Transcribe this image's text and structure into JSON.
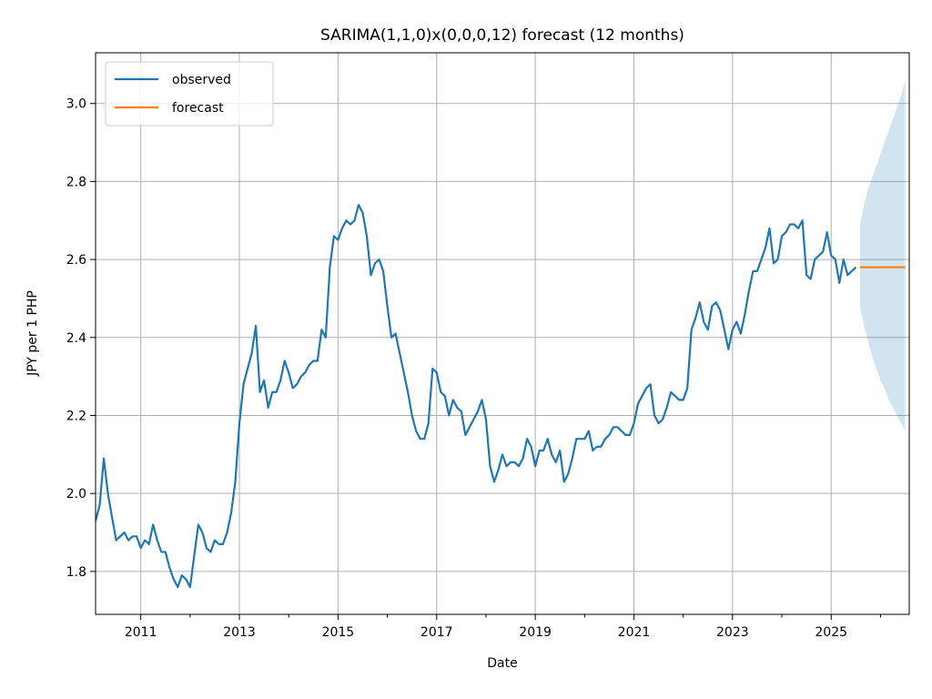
{
  "chart_data": {
    "type": "line",
    "title": "SARIMA(1,1,0)x(0,0,0,12) forecast (12 months)",
    "xlabel": "Date",
    "ylabel": "JPY per 1 PHP",
    "xlim": [
      "2010-02",
      "2026-08"
    ],
    "ylim": [
      1.69,
      3.13
    ],
    "x_ticks": [
      "2011",
      "2013",
      "2015",
      "2017",
      "2019",
      "2021",
      "2023",
      "2025"
    ],
    "y_ticks": [
      "1.8",
      "2.0",
      "2.2",
      "2.4",
      "2.6",
      "2.8",
      "3.0"
    ],
    "grid": true,
    "legend_position": "upper-left",
    "series": [
      {
        "name": "observed",
        "color": "#1f77b4",
        "points": [
          [
            "2010-02",
            1.93
          ],
          [
            "2010-03",
            1.97
          ],
          [
            "2010-04",
            2.09
          ],
          [
            "2010-05",
            2.0
          ],
          [
            "2010-06",
            1.94
          ],
          [
            "2010-07",
            1.88
          ],
          [
            "2010-08",
            1.89
          ],
          [
            "2010-09",
            1.9
          ],
          [
            "2010-10",
            1.88
          ],
          [
            "2010-11",
            1.89
          ],
          [
            "2010-12",
            1.89
          ],
          [
            "2011-01",
            1.86
          ],
          [
            "2011-02",
            1.88
          ],
          [
            "2011-03",
            1.87
          ],
          [
            "2011-04",
            1.92
          ],
          [
            "2011-05",
            1.88
          ],
          [
            "2011-06",
            1.85
          ],
          [
            "2011-07",
            1.85
          ],
          [
            "2011-08",
            1.81
          ],
          [
            "2011-09",
            1.78
          ],
          [
            "2011-10",
            1.76
          ],
          [
            "2011-11",
            1.79
          ],
          [
            "2011-12",
            1.78
          ],
          [
            "2012-01",
            1.76
          ],
          [
            "2012-02",
            1.84
          ],
          [
            "2012-03",
            1.92
          ],
          [
            "2012-04",
            1.9
          ],
          [
            "2012-05",
            1.86
          ],
          [
            "2012-06",
            1.85
          ],
          [
            "2012-07",
            1.88
          ],
          [
            "2012-08",
            1.87
          ],
          [
            "2012-09",
            1.87
          ],
          [
            "2012-10",
            1.9
          ],
          [
            "2012-11",
            1.95
          ],
          [
            "2012-12",
            2.03
          ],
          [
            "2013-01",
            2.18
          ],
          [
            "2013-02",
            2.28
          ],
          [
            "2013-03",
            2.32
          ],
          [
            "2013-04",
            2.36
          ],
          [
            "2013-05",
            2.43
          ],
          [
            "2013-06",
            2.26
          ],
          [
            "2013-07",
            2.29
          ],
          [
            "2013-08",
            2.22
          ],
          [
            "2013-09",
            2.26
          ],
          [
            "2013-10",
            2.26
          ],
          [
            "2013-11",
            2.29
          ],
          [
            "2013-12",
            2.34
          ],
          [
            "2014-01",
            2.31
          ],
          [
            "2014-02",
            2.27
          ],
          [
            "2014-03",
            2.28
          ],
          [
            "2014-04",
            2.3
          ],
          [
            "2014-05",
            2.31
          ],
          [
            "2014-06",
            2.33
          ],
          [
            "2014-07",
            2.34
          ],
          [
            "2014-08",
            2.34
          ],
          [
            "2014-09",
            2.42
          ],
          [
            "2014-10",
            2.4
          ],
          [
            "2014-11",
            2.58
          ],
          [
            "2014-12",
            2.66
          ],
          [
            "2015-01",
            2.65
          ],
          [
            "2015-02",
            2.68
          ],
          [
            "2015-03",
            2.7
          ],
          [
            "2015-04",
            2.69
          ],
          [
            "2015-05",
            2.7
          ],
          [
            "2015-06",
            2.74
          ],
          [
            "2015-07",
            2.72
          ],
          [
            "2015-08",
            2.66
          ],
          [
            "2015-09",
            2.56
          ],
          [
            "2015-10",
            2.59
          ],
          [
            "2015-11",
            2.6
          ],
          [
            "2015-12",
            2.57
          ],
          [
            "2016-01",
            2.48
          ],
          [
            "2016-02",
            2.4
          ],
          [
            "2016-03",
            2.41
          ],
          [
            "2016-04",
            2.36
          ],
          [
            "2016-05",
            2.31
          ],
          [
            "2016-06",
            2.26
          ],
          [
            "2016-07",
            2.2
          ],
          [
            "2016-08",
            2.16
          ],
          [
            "2016-09",
            2.14
          ],
          [
            "2016-10",
            2.14
          ],
          [
            "2016-11",
            2.18
          ],
          [
            "2016-12",
            2.32
          ],
          [
            "2017-01",
            2.31
          ],
          [
            "2017-02",
            2.26
          ],
          [
            "2017-03",
            2.25
          ],
          [
            "2017-04",
            2.2
          ],
          [
            "2017-05",
            2.24
          ],
          [
            "2017-06",
            2.22
          ],
          [
            "2017-07",
            2.21
          ],
          [
            "2017-08",
            2.15
          ],
          [
            "2017-09",
            2.17
          ],
          [
            "2017-10",
            2.19
          ],
          [
            "2017-11",
            2.21
          ],
          [
            "2017-12",
            2.24
          ],
          [
            "2018-01",
            2.19
          ],
          [
            "2018-02",
            2.07
          ],
          [
            "2018-03",
            2.03
          ],
          [
            "2018-04",
            2.06
          ],
          [
            "2018-05",
            2.1
          ],
          [
            "2018-06",
            2.07
          ],
          [
            "2018-07",
            2.08
          ],
          [
            "2018-08",
            2.08
          ],
          [
            "2018-09",
            2.07
          ],
          [
            "2018-10",
            2.09
          ],
          [
            "2018-11",
            2.14
          ],
          [
            "2018-12",
            2.12
          ],
          [
            "2019-01",
            2.07
          ],
          [
            "2019-02",
            2.11
          ],
          [
            "2019-03",
            2.11
          ],
          [
            "2019-04",
            2.14
          ],
          [
            "2019-05",
            2.1
          ],
          [
            "2019-06",
            2.08
          ],
          [
            "2019-07",
            2.11
          ],
          [
            "2019-08",
            2.03
          ],
          [
            "2019-09",
            2.05
          ],
          [
            "2019-10",
            2.09
          ],
          [
            "2019-11",
            2.14
          ],
          [
            "2019-12",
            2.14
          ],
          [
            "2020-01",
            2.14
          ],
          [
            "2020-02",
            2.16
          ],
          [
            "2020-03",
            2.11
          ],
          [
            "2020-04",
            2.12
          ],
          [
            "2020-05",
            2.12
          ],
          [
            "2020-06",
            2.14
          ],
          [
            "2020-07",
            2.15
          ],
          [
            "2020-08",
            2.17
          ],
          [
            "2020-09",
            2.17
          ],
          [
            "2020-10",
            2.16
          ],
          [
            "2020-11",
            2.15
          ],
          [
            "2020-12",
            2.15
          ],
          [
            "2021-01",
            2.18
          ],
          [
            "2021-02",
            2.23
          ],
          [
            "2021-03",
            2.25
          ],
          [
            "2021-04",
            2.27
          ],
          [
            "2021-05",
            2.28
          ],
          [
            "2021-06",
            2.2
          ],
          [
            "2021-07",
            2.18
          ],
          [
            "2021-08",
            2.19
          ],
          [
            "2021-09",
            2.22
          ],
          [
            "2021-10",
            2.26
          ],
          [
            "2021-11",
            2.25
          ],
          [
            "2021-12",
            2.24
          ],
          [
            "2022-01",
            2.24
          ],
          [
            "2022-02",
            2.27
          ],
          [
            "2022-03",
            2.42
          ],
          [
            "2022-04",
            2.45
          ],
          [
            "2022-05",
            2.49
          ],
          [
            "2022-06",
            2.44
          ],
          [
            "2022-07",
            2.42
          ],
          [
            "2022-08",
            2.48
          ],
          [
            "2022-09",
            2.49
          ],
          [
            "2022-10",
            2.47
          ],
          [
            "2022-11",
            2.42
          ],
          [
            "2022-12",
            2.37
          ],
          [
            "2023-01",
            2.42
          ],
          [
            "2023-02",
            2.44
          ],
          [
            "2023-03",
            2.41
          ],
          [
            "2023-04",
            2.46
          ],
          [
            "2023-05",
            2.52
          ],
          [
            "2023-06",
            2.57
          ],
          [
            "2023-07",
            2.57
          ],
          [
            "2023-08",
            2.6
          ],
          [
            "2023-09",
            2.63
          ],
          [
            "2023-10",
            2.68
          ],
          [
            "2023-11",
            2.59
          ],
          [
            "2023-12",
            2.6
          ],
          [
            "2024-01",
            2.66
          ],
          [
            "2024-02",
            2.67
          ],
          [
            "2024-03",
            2.69
          ],
          [
            "2024-04",
            2.69
          ],
          [
            "2024-05",
            2.68
          ],
          [
            "2024-06",
            2.7
          ],
          [
            "2024-07",
            2.56
          ],
          [
            "2024-08",
            2.55
          ],
          [
            "2024-09",
            2.6
          ],
          [
            "2024-10",
            2.61
          ],
          [
            "2024-11",
            2.62
          ],
          [
            "2024-12",
            2.67
          ],
          [
            "2025-01",
            2.61
          ],
          [
            "2025-02",
            2.6
          ],
          [
            "2025-03",
            2.54
          ],
          [
            "2025-04",
            2.6
          ],
          [
            "2025-05",
            2.56
          ],
          [
            "2025-06",
            2.57
          ],
          [
            "2025-07",
            2.58
          ]
        ]
      },
      {
        "name": "forecast",
        "color": "#ff7f0e",
        "points": [
          [
            "2025-08",
            2.58
          ],
          [
            "2025-09",
            2.58
          ],
          [
            "2025-10",
            2.58
          ],
          [
            "2025-11",
            2.58
          ],
          [
            "2025-12",
            2.58
          ],
          [
            "2026-01",
            2.58
          ],
          [
            "2026-02",
            2.58
          ],
          [
            "2026-03",
            2.58
          ],
          [
            "2026-04",
            2.58
          ],
          [
            "2026-05",
            2.58
          ],
          [
            "2026-06",
            2.58
          ],
          [
            "2026-07",
            2.58
          ]
        ]
      }
    ],
    "confidence_band": {
      "color": "#1f77b4",
      "opacity": 0.2,
      "points": [
        [
          "2025-08",
          2.48,
          2.69
        ],
        [
          "2025-09",
          2.43,
          2.74
        ],
        [
          "2025-10",
          2.39,
          2.78
        ],
        [
          "2025-11",
          2.35,
          2.81
        ],
        [
          "2025-12",
          2.32,
          2.84
        ],
        [
          "2026-01",
          2.29,
          2.87
        ],
        [
          "2026-02",
          2.27,
          2.9
        ],
        [
          "2026-03",
          2.24,
          2.93
        ],
        [
          "2026-04",
          2.22,
          2.96
        ],
        [
          "2026-05",
          2.2,
          2.99
        ],
        [
          "2026-06",
          2.18,
          3.02
        ],
        [
          "2026-07",
          2.16,
          3.06
        ]
      ]
    }
  }
}
